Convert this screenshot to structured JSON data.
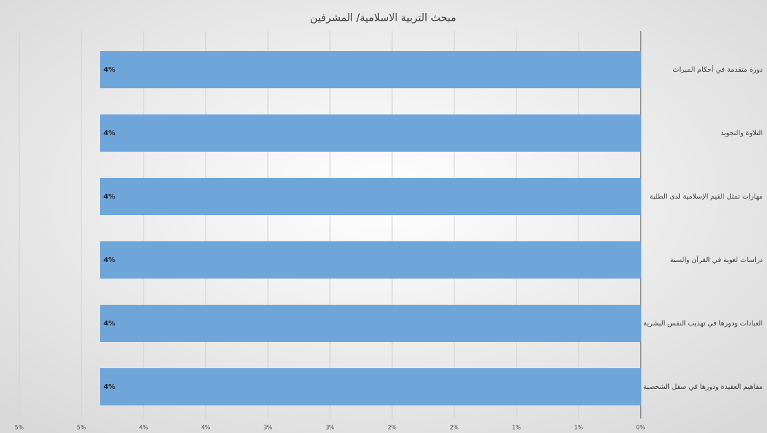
{
  "chart_data": {
    "type": "barh",
    "title": "مبحث التربية الاسلامية/ المشرفين",
    "categories": [
      "دورة متقدمة في أحكام الميراث",
      "التلاوة والتجويد",
      "مهارات تمثل القيم الإسلامية لدى الطلبة",
      "دراسات لغوية في القرآن والسنة",
      "العبادات ودورها في تهذيب النفس البشرية",
      "مفاهيم العقيدة ودورها في صقل الشخصية"
    ],
    "values": [
      4.35,
      4.35,
      4.35,
      4.35,
      4.35,
      4.35
    ],
    "value_labels": [
      "4%",
      "4%",
      "4%",
      "4%",
      "4%",
      "4%"
    ],
    "color": "#6fa6da",
    "xlim": [
      0,
      5
    ],
    "x_reversed": true,
    "xticks": [
      {
        "value": 0,
        "label": "0%"
      },
      {
        "value": 0.5,
        "label": "1%"
      },
      {
        "value": 1,
        "label": "1%"
      },
      {
        "value": 1.5,
        "label": "2%"
      },
      {
        "value": 2,
        "label": "2%"
      },
      {
        "value": 2.5,
        "label": "3%"
      },
      {
        "value": 3,
        "label": "3%"
      },
      {
        "value": 3.5,
        "label": "4%"
      },
      {
        "value": 4,
        "label": "4%"
      },
      {
        "value": 4.5,
        "label": "5%"
      },
      {
        "value": 5,
        "label": "5%"
      }
    ],
    "grid": true
  }
}
